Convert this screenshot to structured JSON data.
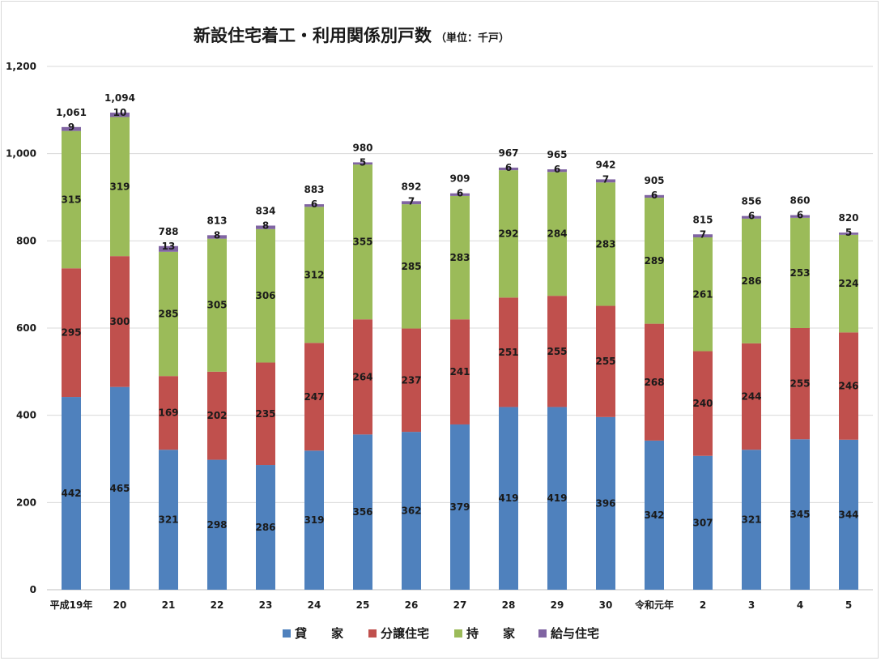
{
  "chart_data": {
    "type": "bar",
    "stacked": true,
    "title": "新設住宅着工・利用関係別戸数",
    "unit_label": "（単位：千戸）",
    "ylim": [
      0,
      1200
    ],
    "yticks": [
      0,
      200,
      400,
      600,
      800,
      1000,
      1200
    ],
    "ytick_labels": [
      "0",
      "200",
      "400",
      "600",
      "800",
      "1,000",
      "1,200"
    ],
    "grid": true,
    "legend_position": "bottom",
    "categories": [
      "平成19年",
      "20",
      "21",
      "22",
      "23",
      "24",
      "25",
      "26",
      "27",
      "28",
      "29",
      "30",
      "令和元年",
      "2",
      "3",
      "4",
      "5"
    ],
    "series": [
      {
        "name": "貸　　家",
        "color": "#4f81bd",
        "values": [
          442,
          465,
          321,
          298,
          286,
          319,
          356,
          362,
          379,
          419,
          419,
          396,
          342,
          307,
          321,
          345,
          344
        ]
      },
      {
        "name": "分譲住宅",
        "color": "#c0504d",
        "values": [
          295,
          300,
          169,
          202,
          235,
          247,
          264,
          237,
          241,
          251,
          255,
          255,
          268,
          240,
          244,
          255,
          246
        ]
      },
      {
        "name": "持　　家",
        "color": "#9bbb59",
        "values": [
          315,
          319,
          285,
          305,
          306,
          312,
          355,
          285,
          283,
          292,
          284,
          283,
          289,
          261,
          286,
          253,
          224
        ]
      },
      {
        "name": "給与住宅",
        "color": "#8064a2",
        "values": [
          9,
          10,
          13,
          8,
          8,
          6,
          5,
          7,
          6,
          6,
          6,
          7,
          6,
          7,
          6,
          6,
          5
        ]
      }
    ],
    "totals": [
      "1,061",
      "1,094",
      "788",
      "813",
      "834",
      "883",
      "980",
      "892",
      "909",
      "967",
      "965",
      "942",
      "905",
      "815",
      "856",
      "860",
      "820"
    ]
  }
}
